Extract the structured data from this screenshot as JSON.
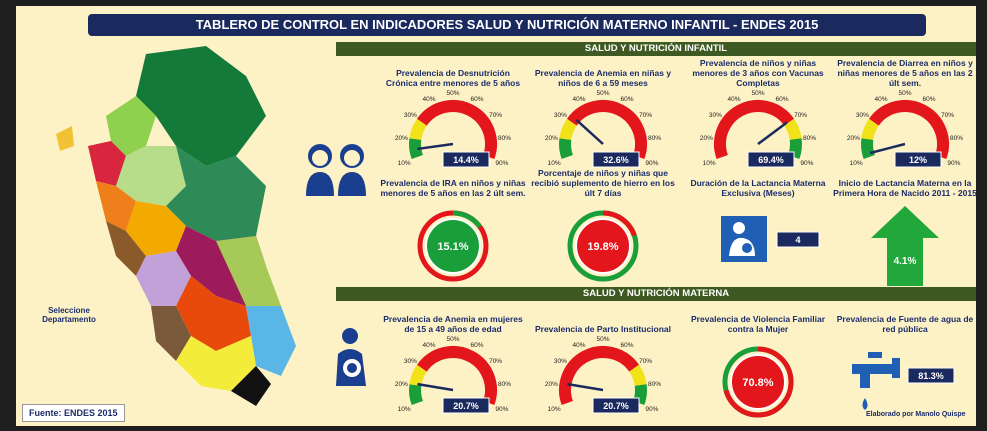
{
  "header": {
    "title": "TABLERO DE CONTROL EN INDICADORES SALUD Y NUTRICIÓN MATERNO INFANTIL - ENDES 2015"
  },
  "sections": [
    {
      "title": "SALUD Y NUTRICIÓN INFANTIL"
    },
    {
      "title": "SALUD Y NUTRICIÓN MATERNA"
    }
  ],
  "map": {
    "prompt": "Seleccione Departamento",
    "source": "Fuente: ENDES 2015"
  },
  "credit": "Elaborado por Manolo Quispe",
  "gauge_ticks": [
    {
      "value": 10,
      "label": "10%"
    },
    {
      "value": 20,
      "label": "20%"
    },
    {
      "value": 30,
      "label": "30%"
    },
    {
      "value": 40,
      "label": "40%"
    },
    {
      "value": 50,
      "label": "50%"
    },
    {
      "value": 60,
      "label": "60%"
    },
    {
      "value": 70,
      "label": "70%"
    },
    {
      "value": 80,
      "label": "80%"
    },
    {
      "value": 90,
      "label": "90%"
    }
  ],
  "indicators": [
    {
      "type": "gauge",
      "title": "Prevalencia de Desnutrición Crónica entre menores de 5 años",
      "value": 14.4,
      "value_label": "14.4%",
      "band_colors": [
        "#1a9e3a",
        "#f2e21a",
        "#e3161b"
      ]
    },
    {
      "type": "gauge",
      "title": "Prevalencia de Anemia en niñas y niños de 6 a 59 meses",
      "value": 32.6,
      "value_label": "32.6%",
      "band_colors": [
        "#1a9e3a",
        "#f2e21a",
        "#e3161b"
      ]
    },
    {
      "type": "gauge",
      "title": "Prevalencia de niños y niñas menores de 3 años con Vacunas Completas",
      "value": 69.4,
      "value_label": "69.4%",
      "band_colors": [
        "#e3161b",
        "#f2e21a",
        "#1a9e3a"
      ]
    },
    {
      "type": "gauge",
      "title": "Prevalencia de Diarrea en niños y niñas menores de 5 años en las 2 últ sem.",
      "value": 12,
      "value_label": "12%",
      "band_colors": [
        "#1a9e3a",
        "#f2e21a",
        "#e3161b"
      ]
    },
    {
      "type": "donut",
      "title": "Prevalencia de IRA en niños y niñas menores de 5 años en las 2 últ sem.",
      "value": 15.1,
      "value_label": "15.1%",
      "color": "#1a9e3a",
      "ring_color": "#e3161b"
    },
    {
      "type": "donut",
      "title": "Porcentaje de niños y niñas que recibió suplemento de hierro en los últ 7 días",
      "value": 19.8,
      "value_label": "19.8%",
      "color": "#e3161b",
      "ring_color": "#1a9e3a"
    },
    {
      "type": "number",
      "title": "Duración de la Lactancia Materna Exclusiva (Meses)",
      "value": 4
    },
    {
      "type": "arrow",
      "title": "Inicio de Lactancia Materna en la Primera Hora de Nacido 2011 - 2015",
      "value": 4.1,
      "value_label": "4.1%",
      "color": "#22a83a"
    },
    {
      "type": "gauge",
      "title": "Prevalencia de Anemia en mujeres de 15 a 49 años de edad",
      "value": 20.7,
      "value_label": "20.7%",
      "band_colors": [
        "#1a9e3a",
        "#f2e21a",
        "#e3161b"
      ]
    },
    {
      "type": "gauge",
      "title": "Prevalencia de Parto Institucional",
      "value": 20.7,
      "value_label": "20.7%",
      "band_colors": [
        "#e3161b",
        "#f2e21a",
        "#1a9e3a"
      ]
    },
    {
      "type": "donut",
      "title": "Prevalencia de Violencia Familiar contra la Mujer",
      "value": 70.8,
      "value_label": "70.8%",
      "color": "#e3161b",
      "ring_color": "#1a9e3a"
    },
    {
      "type": "tap",
      "title": "Prevalencia de Fuente de agua de red pública",
      "value": 81.3,
      "value_label": "81.3%"
    }
  ]
}
